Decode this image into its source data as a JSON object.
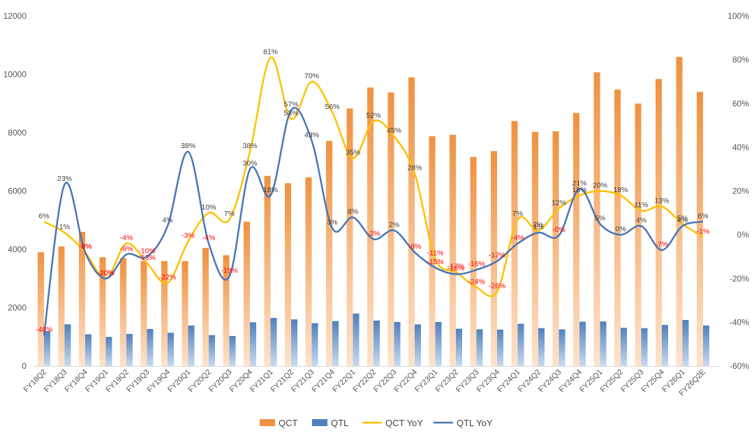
{
  "chart_data": {
    "type": "bar",
    "title": "",
    "categories": [
      "FY18Q2",
      "FY18Q3",
      "FY18Q4",
      "FY19Q1",
      "FY19Q2",
      "FY19Q3",
      "FY19Q4",
      "FY20Q1",
      "FY20Q2",
      "FY20Q3",
      "FY20Q4",
      "FY21Q1",
      "FY21Q2",
      "FY21Q3",
      "FY21Q4",
      "FY22Q1",
      "FY22Q2",
      "FY22Q3",
      "FY22Q4",
      "FY23Q1",
      "FY23Q2",
      "FY23Q3",
      "FY23Q4",
      "FY24Q1",
      "FY24Q2",
      "FY24Q3",
      "FY24Q4",
      "FY25Q1",
      "FY25Q2",
      "FY25Q3",
      "FY25Q4",
      "FY26Q1",
      "FY26Q2E"
    ],
    "y_left": {
      "ylim": [
        0,
        12000
      ],
      "ticks": [
        "0",
        "2000",
        "4000",
        "6000",
        "8000",
        "10000",
        "12000"
      ],
      "tick_values": [
        0,
        2000,
        4000,
        6000,
        8000,
        10000,
        12000
      ]
    },
    "y_right": {
      "ylim": [
        -60,
        100
      ],
      "ticks": [
        "-60%",
        "-40%",
        "-20%",
        "0%",
        "20%",
        "40%",
        "60%",
        "80%",
        "100%"
      ],
      "tick_values": [
        -60,
        -40,
        -20,
        0,
        20,
        40,
        60,
        80,
        100
      ]
    },
    "legend_position": "bottom",
    "series": [
      {
        "name": "QCT",
        "kind": "bar",
        "axis": "left",
        "color_top": "#f0913f",
        "color_bottom": "#fde3cc",
        "values": [
          3900,
          4100,
          4600,
          3730,
          3700,
          3600,
          3600,
          3600,
          4050,
          3800,
          4950,
          6520,
          6270,
          6470,
          7720,
          8830,
          9550,
          9380,
          9900,
          7880,
          7930,
          7170,
          7370,
          8400,
          8030,
          8050,
          8680,
          10070,
          9480,
          9000,
          9840,
          10600,
          9400
        ]
      },
      {
        "name": "QTL",
        "kind": "bar",
        "axis": "left",
        "color_top": "#4f81bd",
        "color_bottom": "#c9daf0",
        "values": [
          1200,
          1430,
          1090,
          1000,
          1100,
          1270,
          1140,
          1390,
          1060,
          1030,
          1500,
          1650,
          1600,
          1470,
          1540,
          1800,
          1560,
          1510,
          1430,
          1510,
          1280,
          1260,
          1250,
          1450,
          1300,
          1260,
          1520,
          1530,
          1310,
          1300,
          1410,
          1580,
          1390
        ]
      },
      {
        "name": "QCT YoY",
        "kind": "line",
        "axis": "right",
        "color": "#ffc000",
        "values": [
          6,
          1,
          -8,
          -20,
          -4,
          -13,
          -22,
          -3,
          10,
          7,
          38,
          81,
          53,
          70,
          56,
          35,
          52,
          45,
          28,
          -11,
          -17,
          -24,
          -26,
          7,
          2,
          12,
          18,
          20,
          18,
          11,
          13,
          5,
          -1
        ],
        "labels": [
          "6%",
          "1%",
          "-8%",
          "-20%",
          "-4%",
          "-13%",
          "-22%",
          "-3%",
          "10%",
          "7%",
          "38%",
          "81%",
          "53%",
          "70%",
          "56%",
          "35%",
          "52%",
          "45%",
          "28%",
          "-11%",
          "-17%",
          "-24%",
          "-26%",
          "7%",
          "2%",
          "12%",
          "18%",
          "20%",
          "18%",
          "11%",
          "13%",
          "5%",
          "-1%"
        ],
        "label_colors": [
          "#404040",
          "#404040",
          "#ff0000",
          "#ff0000",
          "#ff0000",
          "#ff0000",
          "#ff0000",
          "#ff0000",
          "#404040",
          "#404040",
          "#404040",
          "#404040",
          "#404040",
          "#404040",
          "#404040",
          "#404040",
          "#404040",
          "#404040",
          "#404040",
          "#ff0000",
          "#ff0000",
          "#ff0000",
          "#ff0000",
          "#404040",
          "#404040",
          "#404040",
          "#404040",
          "#404040",
          "#404040",
          "#404040",
          "#404040",
          "#404040",
          "#ff0000"
        ]
      },
      {
        "name": "QTL YoY",
        "kind": "line",
        "axis": "right",
        "color": "#4a76b5",
        "values": [
          -46,
          23,
          -8,
          -20,
          -9,
          -10,
          4,
          38,
          -4,
          -19,
          30,
          18,
          57,
          43,
          3,
          8,
          -2,
          2,
          -8,
          -15,
          -18,
          -16,
          -12,
          -4,
          1,
          -0.3,
          21,
          5,
          0,
          4,
          -7,
          4,
          6
        ],
        "labels": [
          "-46%",
          "23%",
          "-8%",
          "-20%",
          "-9%",
          "-10%",
          "4%",
          "38%",
          "-4%",
          "-19%",
          "30%",
          "18%",
          "57%",
          "43%",
          "3%",
          "8%",
          "-2%",
          "2%",
          "-8%",
          "-15%",
          "-18%",
          "-16%",
          "-12%",
          "-4%",
          "1%",
          "-0%",
          "21%",
          "5%",
          "0%",
          "4%",
          "-7%",
          "4%",
          "6%"
        ],
        "label_colors": [
          "#ff0000",
          "#404040",
          "#ff0000",
          "#ff0000",
          "#ff0000",
          "#ff0000",
          "#404040",
          "#404040",
          "#ff0000",
          "#ff0000",
          "#404040",
          "#404040",
          "#404040",
          "#404040",
          "#404040",
          "#404040",
          "#ff0000",
          "#404040",
          "#ff0000",
          "#ff0000",
          "#ff0000",
          "#ff0000",
          "#ff0000",
          "#ff0000",
          "#404040",
          "#ff0000",
          "#404040",
          "#404040",
          "#404040",
          "#404040",
          "#ff0000",
          "#404040",
          "#404040"
        ]
      }
    ]
  }
}
